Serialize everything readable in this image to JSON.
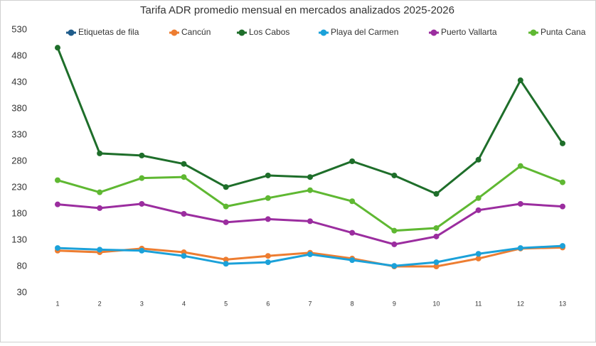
{
  "chart_data": {
    "type": "line",
    "title": "Tarifa ADR promedio mensual en mercados analizados 2025-2026",
    "categories": [
      "1",
      "2",
      "3",
      "4",
      "5",
      "6",
      "7",
      "8",
      "9",
      "10",
      "11",
      "12",
      "13"
    ],
    "ylim": [
      30,
      530
    ],
    "yticks": [
      30,
      80,
      130,
      180,
      230,
      280,
      330,
      380,
      430,
      480,
      530
    ],
    "grid": false,
    "series": [
      {
        "name": "Etiquetas de fila",
        "color": "#1f5c8b",
        "values": [
          null,
          null,
          null,
          null,
          null,
          null,
          null,
          null,
          null,
          null,
          null,
          null,
          null
        ]
      },
      {
        "name": "Cancún",
        "color": "#ed7d31",
        "values": [
          110,
          107,
          114,
          107,
          93,
          100,
          106,
          95,
          80,
          80,
          95,
          114,
          116
        ]
      },
      {
        "name": "Los Cabos",
        "color": "#1e6e2a",
        "values": [
          496,
          295,
          291,
          275,
          231,
          253,
          250,
          280,
          253,
          218,
          283,
          434,
          314
        ]
      },
      {
        "name": "Playa del Carmen",
        "color": "#1ba1d9",
        "values": [
          115,
          112,
          110,
          100,
          85,
          88,
          103,
          92,
          81,
          88,
          104,
          115,
          119
        ]
      },
      {
        "name": "Puerto Vallarta",
        "color": "#9b2d9f",
        "values": [
          198,
          191,
          199,
          180,
          164,
          170,
          166,
          144,
          122,
          137,
          187,
          199,
          194
        ]
      },
      {
        "name": "Punta Cana",
        "color": "#5fb832",
        "values": [
          244,
          221,
          248,
          250,
          194,
          210,
          225,
          204,
          148,
          153,
          210,
          271,
          240
        ]
      }
    ]
  }
}
